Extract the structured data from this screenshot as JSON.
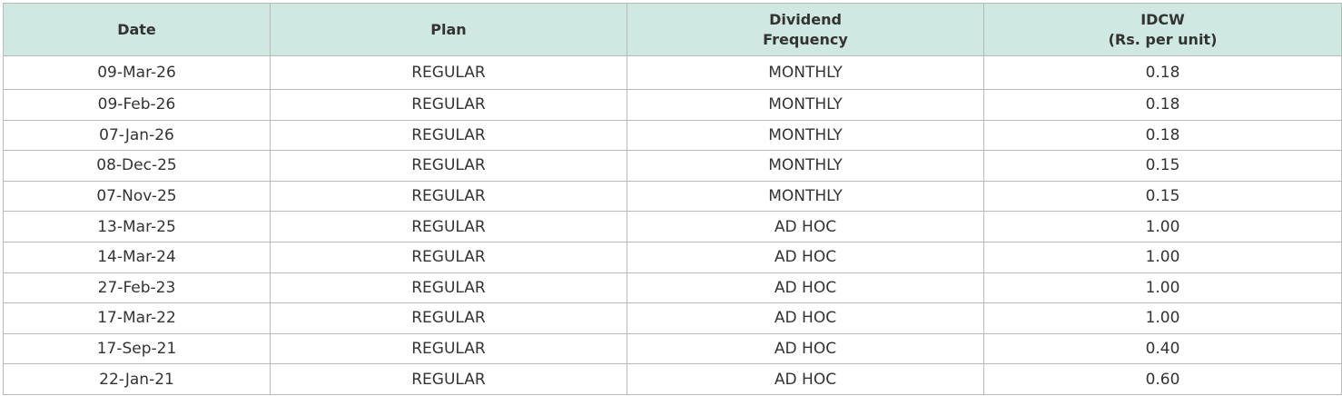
{
  "table": {
    "header": [
      "Date",
      "Plan",
      "Dividend\nFrequency",
      "IDCW\n(Rs. per unit)"
    ],
    "rows": [
      [
        "09-Mar-26",
        "REGULAR",
        "MONTHLY",
        "0.18"
      ],
      [
        "09-Feb-26",
        "REGULAR",
        "MONTHLY",
        "0.18"
      ],
      [
        "07-Jan-26",
        "REGULAR",
        "MONTHLY",
        "0.18"
      ],
      [
        "08-Dec-25",
        "REGULAR",
        "MONTHLY",
        "0.15"
      ],
      [
        "07-Nov-25",
        "REGULAR",
        "MONTHLY",
        "0.15"
      ],
      [
        "13-Mar-25",
        "REGULAR",
        "AD HOC",
        "1.00"
      ],
      [
        "14-Mar-24",
        "REGULAR",
        "AD HOC",
        "1.00"
      ],
      [
        "27-Feb-23",
        "REGULAR",
        "AD HOC",
        "1.00"
      ],
      [
        "17-Mar-22",
        "REGULAR",
        "AD HOC",
        "1.00"
      ],
      [
        "17-Sep-21",
        "REGULAR",
        "AD HOC",
        "0.40"
      ],
      [
        "22-Jan-21",
        "REGULAR",
        "AD HOC",
        "0.60"
      ]
    ]
  }
}
